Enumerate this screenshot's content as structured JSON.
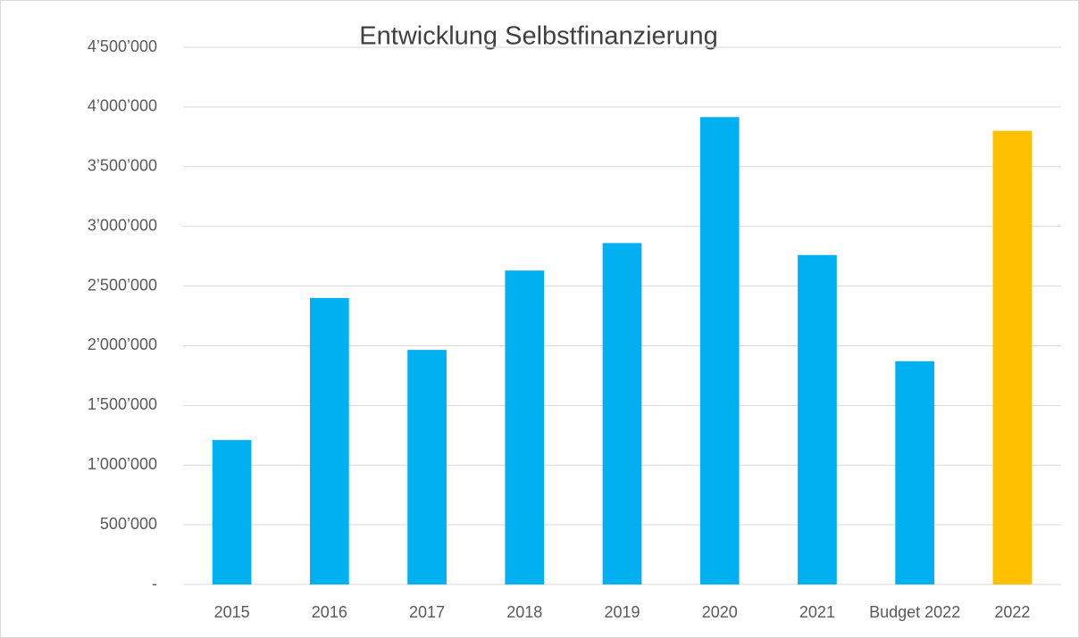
{
  "chart_data": {
    "type": "bar",
    "title": "Entwicklung Selbstfinanzierung",
    "categories": [
      "2015",
      "2016",
      "2017",
      "2018",
      "2019",
      "2020",
      "2021",
      "Budget 2022",
      "2022"
    ],
    "values": [
      1210000,
      2400000,
      1965000,
      2630000,
      2860000,
      3915000,
      2760000,
      1870000,
      3800000
    ],
    "colors": [
      "#00b0f0",
      "#00b0f0",
      "#00b0f0",
      "#00b0f0",
      "#00b0f0",
      "#00b0f0",
      "#00b0f0",
      "#00b0f0",
      "#ffc000"
    ],
    "ylim": [
      0,
      4500000
    ],
    "yticks": [
      {
        "value": 0,
        "label": "-"
      },
      {
        "value": 500000,
        "label": "500’000"
      },
      {
        "value": 1000000,
        "label": "1’000’000"
      },
      {
        "value": 1500000,
        "label": "1’500’000"
      },
      {
        "value": 2000000,
        "label": "2’000’000"
      },
      {
        "value": 2500000,
        "label": "2’500’000"
      },
      {
        "value": 3000000,
        "label": "3’000’000"
      },
      {
        "value": 3500000,
        "label": "3’500’000"
      },
      {
        "value": 4000000,
        "label": "4’000’000"
      },
      {
        "value": 4500000,
        "label": "4’500’000"
      }
    ],
    "grid": true
  }
}
